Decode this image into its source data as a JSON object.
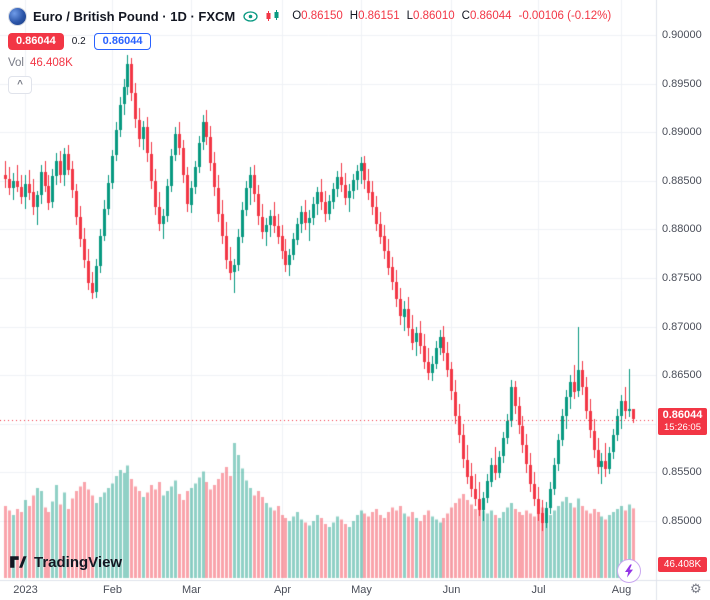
{
  "header": {
    "symbol_title": "Euro / British Pound · 1D · FXCM",
    "ohlc": {
      "o_label": "O",
      "o": "0.86150",
      "h_label": "H",
      "h": "0.86151",
      "l_label": "L",
      "l": "0.86010",
      "c_label": "C",
      "c": "0.86044",
      "change": "-0.00106 (-0.12%)"
    },
    "sell_price": "0.86044",
    "spread": "0.2",
    "buy_price": "0.86044",
    "vol_label": "Vol",
    "vol_value": "46.408K",
    "collapse_icon": "^"
  },
  "icons": {
    "eye_icon": "visibility-toggle",
    "candles_icon": "chart-style-candles",
    "lightning_icon": "instant-trading",
    "gear_icon": "⚙",
    "symbol_logo": "eurgbp-pair-logo"
  },
  "price_axis": {
    "labels": [
      "0.90000",
      "0.89500",
      "0.89000",
      "0.88500",
      "0.88000",
      "0.87500",
      "0.87000",
      "0.86500",
      "0.86000",
      "0.85500",
      "0.85000"
    ],
    "last_price_label": "0.86044",
    "countdown": "15:26:05",
    "volume_value": "46.408K"
  },
  "time_axis": {
    "labels": [
      {
        "text": "2023",
        "index": 5
      },
      {
        "text": "Feb",
        "index": 27
      },
      {
        "text": "Mar",
        "index": 47
      },
      {
        "text": "Apr",
        "index": 70
      },
      {
        "text": "May",
        "index": 90
      },
      {
        "text": "Jun",
        "index": 113
      },
      {
        "text": "Jul",
        "index": 135
      },
      {
        "text": "Aug",
        "index": 156
      }
    ]
  },
  "footer": {
    "logo_text": "TradingView"
  },
  "chart_data": {
    "type": "candlestick",
    "title": "Euro / British Pound 1D FXCM",
    "symbol": "EUR/GBP",
    "timeframe": "1D",
    "last_price": 0.86044,
    "price_min": 0.85,
    "price_max": 0.9,
    "price_step": 0.005,
    "volume_unit": "K",
    "last_volume": 46.408,
    "colors": {
      "up": "#089981",
      "down": "#f23645",
      "vol_up": "rgba(8,153,129,0.45)",
      "vol_down": "rgba(242,54,69,0.45)",
      "grid": "#f0f2f6",
      "axis_line": "#e0e3eb",
      "last_line": "#f23645"
    },
    "candles_format": [
      "open",
      "high",
      "low",
      "close",
      "volume_k"
    ],
    "candles": [
      [
        0.8856,
        0.887,
        0.8842,
        0.8852,
        48
      ],
      [
        0.8852,
        0.8864,
        0.8835,
        0.8843,
        45
      ],
      [
        0.8843,
        0.8858,
        0.883,
        0.885,
        42
      ],
      [
        0.885,
        0.8866,
        0.8838,
        0.8844,
        46
      ],
      [
        0.8844,
        0.8856,
        0.8826,
        0.8834,
        44
      ],
      [
        0.8834,
        0.8856,
        0.8821,
        0.8847,
        52
      ],
      [
        0.8847,
        0.8861,
        0.883,
        0.8838,
        48
      ],
      [
        0.8838,
        0.8852,
        0.8815,
        0.8823,
        55
      ],
      [
        0.8823,
        0.884,
        0.8805,
        0.8835,
        60
      ],
      [
        0.8835,
        0.8866,
        0.8826,
        0.8859,
        58
      ],
      [
        0.8859,
        0.887,
        0.8838,
        0.8845,
        47
      ],
      [
        0.8845,
        0.8856,
        0.882,
        0.8828,
        44
      ],
      [
        0.8828,
        0.8862,
        0.8822,
        0.8855,
        51
      ],
      [
        0.8855,
        0.8879,
        0.8846,
        0.887,
        62
      ],
      [
        0.887,
        0.8881,
        0.8848,
        0.8856,
        49
      ],
      [
        0.8856,
        0.8884,
        0.8845,
        0.8878,
        57
      ],
      [
        0.8878,
        0.8887,
        0.8856,
        0.8862,
        46
      ],
      [
        0.8862,
        0.887,
        0.8832,
        0.884,
        53
      ],
      [
        0.884,
        0.8847,
        0.8805,
        0.8813,
        58
      ],
      [
        0.8813,
        0.8824,
        0.8782,
        0.879,
        61
      ],
      [
        0.879,
        0.8801,
        0.876,
        0.8768,
        64
      ],
      [
        0.8768,
        0.878,
        0.8738,
        0.8745,
        59
      ],
      [
        0.8745,
        0.8756,
        0.8728,
        0.8735,
        55
      ],
      [
        0.8735,
        0.877,
        0.873,
        0.8762,
        50
      ],
      [
        0.8762,
        0.88,
        0.8755,
        0.8793,
        54
      ],
      [
        0.8793,
        0.883,
        0.8788,
        0.8821,
        57
      ],
      [
        0.8821,
        0.8856,
        0.8815,
        0.8848,
        60
      ],
      [
        0.8848,
        0.8882,
        0.8842,
        0.8876,
        63
      ],
      [
        0.8876,
        0.891,
        0.887,
        0.8902,
        68
      ],
      [
        0.8902,
        0.8936,
        0.8895,
        0.8928,
        72
      ],
      [
        0.8928,
        0.8955,
        0.8918,
        0.8946,
        70
      ],
      [
        0.8946,
        0.8979,
        0.8938,
        0.897,
        75
      ],
      [
        0.897,
        0.8976,
        0.8932,
        0.894,
        66
      ],
      [
        0.894,
        0.8951,
        0.8905,
        0.8913,
        61
      ],
      [
        0.8913,
        0.8925,
        0.8885,
        0.8893,
        58
      ],
      [
        0.8893,
        0.8912,
        0.8882,
        0.8905,
        54
      ],
      [
        0.8905,
        0.8916,
        0.887,
        0.8878,
        57
      ],
      [
        0.8878,
        0.889,
        0.8842,
        0.885,
        62
      ],
      [
        0.885,
        0.8862,
        0.8815,
        0.8823,
        59
      ],
      [
        0.8823,
        0.8838,
        0.8798,
        0.8806,
        64
      ],
      [
        0.8806,
        0.8821,
        0.879,
        0.8814,
        55
      ],
      [
        0.8814,
        0.8852,
        0.8808,
        0.8845,
        58
      ],
      [
        0.8845,
        0.8883,
        0.8839,
        0.8876,
        61
      ],
      [
        0.8876,
        0.8905,
        0.887,
        0.8898,
        65
      ],
      [
        0.8898,
        0.891,
        0.8876,
        0.8884,
        56
      ],
      [
        0.8884,
        0.8892,
        0.8848,
        0.8856,
        52
      ],
      [
        0.8856,
        0.8864,
        0.8818,
        0.8826,
        58
      ],
      [
        0.8826,
        0.885,
        0.8817,
        0.8843,
        60
      ],
      [
        0.8843,
        0.887,
        0.8836,
        0.8864,
        63
      ],
      [
        0.8864,
        0.8896,
        0.8858,
        0.8889,
        67
      ],
      [
        0.8889,
        0.8918,
        0.8882,
        0.891,
        71
      ],
      [
        0.891,
        0.8923,
        0.8887,
        0.8895,
        64
      ],
      [
        0.8895,
        0.8906,
        0.886,
        0.8868,
        59
      ],
      [
        0.8868,
        0.888,
        0.8835,
        0.8843,
        62
      ],
      [
        0.8843,
        0.8856,
        0.8808,
        0.8816,
        66
      ],
      [
        0.8816,
        0.883,
        0.8785,
        0.8793,
        70
      ],
      [
        0.8793,
        0.8808,
        0.876,
        0.8768,
        74
      ],
      [
        0.8768,
        0.8782,
        0.8748,
        0.8756,
        68
      ],
      [
        0.8756,
        0.877,
        0.8735,
        0.8763,
        90
      ],
      [
        0.8763,
        0.88,
        0.8757,
        0.8792,
        82
      ],
      [
        0.8792,
        0.8828,
        0.8786,
        0.882,
        73
      ],
      [
        0.882,
        0.885,
        0.8814,
        0.8843,
        65
      ],
      [
        0.8843,
        0.8864,
        0.8825,
        0.8856,
        60
      ],
      [
        0.8856,
        0.8866,
        0.8828,
        0.8836,
        55
      ],
      [
        0.8836,
        0.8846,
        0.8805,
        0.8813,
        58
      ],
      [
        0.8813,
        0.8826,
        0.879,
        0.8798,
        54
      ],
      [
        0.8798,
        0.8812,
        0.8783,
        0.8805,
        50
      ],
      [
        0.8805,
        0.882,
        0.8792,
        0.8814,
        47
      ],
      [
        0.8814,
        0.8828,
        0.8796,
        0.8804,
        45
      ],
      [
        0.8804,
        0.8816,
        0.8785,
        0.8793,
        48
      ],
      [
        0.8793,
        0.8805,
        0.877,
        0.8778,
        42
      ],
      [
        0.8778,
        0.879,
        0.8756,
        0.8764,
        40
      ],
      [
        0.8764,
        0.878,
        0.8752,
        0.8774,
        38
      ],
      [
        0.8774,
        0.8796,
        0.8768,
        0.879,
        41
      ],
      [
        0.879,
        0.8812,
        0.8784,
        0.8806,
        44
      ],
      [
        0.8806,
        0.8824,
        0.8796,
        0.8818,
        39
      ],
      [
        0.8818,
        0.883,
        0.8799,
        0.8807,
        37
      ],
      [
        0.8807,
        0.882,
        0.8788,
        0.8812,
        35
      ],
      [
        0.8812,
        0.8833,
        0.8804,
        0.8826,
        38
      ],
      [
        0.8826,
        0.8844,
        0.8815,
        0.8838,
        42
      ],
      [
        0.8838,
        0.8852,
        0.882,
        0.8828,
        40
      ],
      [
        0.8828,
        0.884,
        0.8808,
        0.8816,
        36
      ],
      [
        0.8816,
        0.8835,
        0.8809,
        0.8829,
        34
      ],
      [
        0.8829,
        0.8848,
        0.8821,
        0.8842,
        37
      ],
      [
        0.8842,
        0.886,
        0.8833,
        0.8854,
        41
      ],
      [
        0.8854,
        0.8868,
        0.8838,
        0.8846,
        39
      ],
      [
        0.8846,
        0.8858,
        0.8825,
        0.8833,
        36
      ],
      [
        0.8833,
        0.8847,
        0.8818,
        0.884,
        34
      ],
      [
        0.884,
        0.8857,
        0.8831,
        0.8851,
        38
      ],
      [
        0.8851,
        0.8866,
        0.884,
        0.886,
        42
      ],
      [
        0.886,
        0.8874,
        0.8846,
        0.8868,
        45
      ],
      [
        0.8868,
        0.8876,
        0.8842,
        0.885,
        43
      ],
      [
        0.885,
        0.8862,
        0.883,
        0.8838,
        41
      ],
      [
        0.8838,
        0.885,
        0.8815,
        0.8823,
        44
      ],
      [
        0.8823,
        0.8834,
        0.8798,
        0.8806,
        46
      ],
      [
        0.8806,
        0.8818,
        0.8785,
        0.8793,
        42
      ],
      [
        0.8793,
        0.8805,
        0.877,
        0.8778,
        40
      ],
      [
        0.8778,
        0.879,
        0.8753,
        0.8761,
        44
      ],
      [
        0.8761,
        0.8772,
        0.8738,
        0.8746,
        47
      ],
      [
        0.8746,
        0.8758,
        0.872,
        0.8728,
        45
      ],
      [
        0.8728,
        0.874,
        0.8702,
        0.871,
        48
      ],
      [
        0.871,
        0.8726,
        0.8695,
        0.8718,
        43
      ],
      [
        0.8718,
        0.873,
        0.869,
        0.8698,
        41
      ],
      [
        0.8698,
        0.8712,
        0.8676,
        0.8684,
        44
      ],
      [
        0.8684,
        0.87,
        0.867,
        0.8693,
        40
      ],
      [
        0.8693,
        0.8706,
        0.8672,
        0.868,
        38
      ],
      [
        0.868,
        0.8692,
        0.8656,
        0.8664,
        42
      ],
      [
        0.8664,
        0.8678,
        0.8645,
        0.8653,
        45
      ],
      [
        0.8653,
        0.867,
        0.8644,
        0.8662,
        41
      ],
      [
        0.8662,
        0.8685,
        0.8656,
        0.8678,
        39
      ],
      [
        0.8678,
        0.8696,
        0.867,
        0.8689,
        37
      ],
      [
        0.8689,
        0.8701,
        0.8665,
        0.8673,
        40
      ],
      [
        0.8673,
        0.8684,
        0.8648,
        0.8656,
        43
      ],
      [
        0.8656,
        0.8664,
        0.8625,
        0.8633,
        47
      ],
      [
        0.8633,
        0.8645,
        0.86,
        0.8608,
        50
      ],
      [
        0.8608,
        0.862,
        0.858,
        0.8588,
        53
      ],
      [
        0.8588,
        0.86,
        0.8555,
        0.8563,
        56
      ],
      [
        0.8563,
        0.8578,
        0.8538,
        0.8546,
        52
      ],
      [
        0.8546,
        0.856,
        0.8525,
        0.8533,
        49
      ],
      [
        0.8533,
        0.8548,
        0.8515,
        0.8523,
        46
      ],
      [
        0.8523,
        0.854,
        0.8505,
        0.8512,
        48
      ],
      [
        0.8512,
        0.853,
        0.85,
        0.8524,
        45
      ],
      [
        0.8524,
        0.8548,
        0.8518,
        0.8541,
        43
      ],
      [
        0.8541,
        0.8565,
        0.8535,
        0.8558,
        45
      ],
      [
        0.8558,
        0.8576,
        0.8542,
        0.855,
        42
      ],
      [
        0.855,
        0.8572,
        0.8544,
        0.8566,
        40
      ],
      [
        0.8566,
        0.8592,
        0.856,
        0.8585,
        44
      ],
      [
        0.8585,
        0.861,
        0.8579,
        0.8603,
        47
      ],
      [
        0.8603,
        0.8645,
        0.8597,
        0.8638,
        50
      ],
      [
        0.8638,
        0.8644,
        0.861,
        0.8618,
        46
      ],
      [
        0.8618,
        0.8628,
        0.859,
        0.8598,
        44
      ],
      [
        0.8598,
        0.8608,
        0.857,
        0.8578,
        42
      ],
      [
        0.8578,
        0.859,
        0.855,
        0.8558,
        45
      ],
      [
        0.8558,
        0.857,
        0.853,
        0.8538,
        43
      ],
      [
        0.8538,
        0.855,
        0.8515,
        0.8523,
        41
      ],
      [
        0.8523,
        0.8535,
        0.85,
        0.8508,
        44
      ],
      [
        0.8508,
        0.8522,
        0.849,
        0.8498,
        47
      ],
      [
        0.8498,
        0.852,
        0.8493,
        0.8513,
        44
      ],
      [
        0.8513,
        0.854,
        0.8507,
        0.8533,
        42
      ],
      [
        0.8533,
        0.8565,
        0.8527,
        0.8558,
        45
      ],
      [
        0.8558,
        0.859,
        0.8552,
        0.8583,
        48
      ],
      [
        0.8583,
        0.8615,
        0.8577,
        0.8608,
        51
      ],
      [
        0.8608,
        0.8635,
        0.8595,
        0.8628,
        54
      ],
      [
        0.8628,
        0.865,
        0.8615,
        0.8643,
        50
      ],
      [
        0.8643,
        0.866,
        0.8625,
        0.8633,
        47
      ],
      [
        0.8633,
        0.87,
        0.8628,
        0.8655,
        53
      ],
      [
        0.8655,
        0.8665,
        0.863,
        0.8638,
        48
      ],
      [
        0.8638,
        0.8648,
        0.8605,
        0.8613,
        45
      ],
      [
        0.8613,
        0.8625,
        0.8585,
        0.8593,
        43
      ],
      [
        0.8593,
        0.8605,
        0.8565,
        0.8573,
        46
      ],
      [
        0.8573,
        0.8585,
        0.8548,
        0.8556,
        44
      ],
      [
        0.8556,
        0.857,
        0.8538,
        0.8562,
        41
      ],
      [
        0.8562,
        0.858,
        0.8545,
        0.8554,
        39
      ],
      [
        0.8554,
        0.8576,
        0.8548,
        0.857,
        42
      ],
      [
        0.857,
        0.8595,
        0.8564,
        0.8588,
        44
      ],
      [
        0.8588,
        0.8615,
        0.8582,
        0.8608,
        46
      ],
      [
        0.8608,
        0.863,
        0.8595,
        0.8623,
        48
      ],
      [
        0.8623,
        0.8638,
        0.8605,
        0.8613,
        45
      ],
      [
        0.8613,
        0.8656,
        0.8607,
        0.8615,
        49
      ],
      [
        0.8615,
        0.86151,
        0.8601,
        0.86044,
        46.408
      ]
    ]
  }
}
